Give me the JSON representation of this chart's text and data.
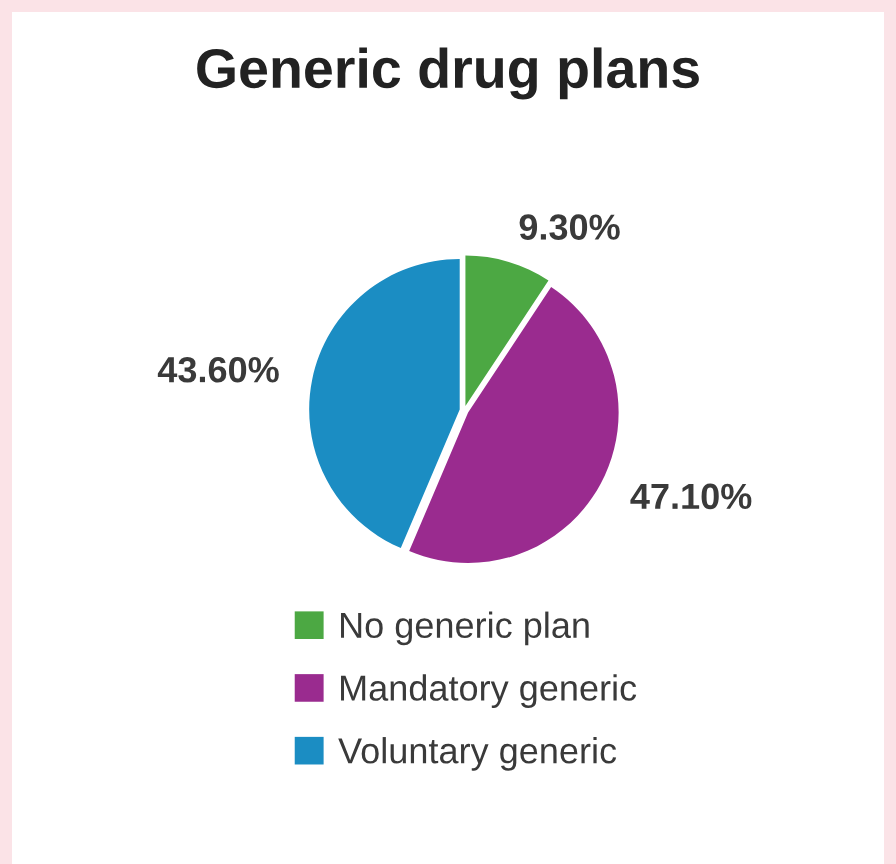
{
  "chart_data": {
    "type": "pie",
    "title": "Generic drug plans",
    "categories": [
      "No generic plan",
      "Mandatory generic",
      "Voluntary generic"
    ],
    "values": [
      9.3,
      47.1,
      43.6
    ],
    "value_labels": [
      "9.30%",
      "47.10%",
      "43.60%"
    ],
    "colors": [
      "#4ca843",
      "#9a2b8f",
      "#1b8dc3"
    ],
    "legend": "bottom"
  }
}
